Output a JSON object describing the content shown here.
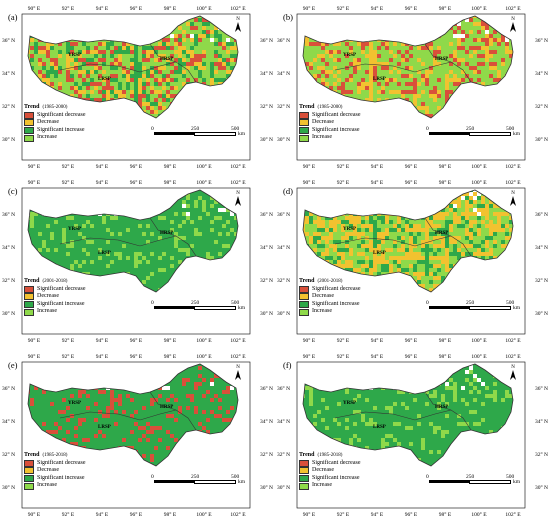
{
  "panels": [
    {
      "id": "a",
      "label": "(a)",
      "trend_title": "Trend",
      "period": "(1985-2000)",
      "legend": [
        "Significant decrease",
        "Decrease",
        "Significant increase",
        "Increase"
      ],
      "theme": "mixed"
    },
    {
      "id": "b",
      "label": "(b)",
      "trend_title": "Trend",
      "period": "(1985-2000)",
      "legend": [
        "Significant decrease",
        "Decrease",
        "Significant increase",
        "Increase"
      ],
      "theme": "lightgreen"
    },
    {
      "id": "c",
      "label": "(c)",
      "trend_title": "Trend",
      "period": "(2001-2018)",
      "legend": [
        "Significant decrease",
        "Decrease",
        "Significant increase",
        "Increase"
      ],
      "theme": "green"
    },
    {
      "id": "d",
      "label": "(d)",
      "trend_title": "Trend",
      "period": "(2001-2018)",
      "legend": [
        "Significant decrease",
        "Decrease",
        "Significant increase",
        "Increase"
      ],
      "theme": "yellow"
    },
    {
      "id": "e",
      "label": "(e)",
      "trend_title": "Trend",
      "period": "(1985-2018)",
      "legend": [
        "Significant decrease",
        "Decrease",
        "Significant increase",
        "Increase"
      ],
      "theme": "darkgreen"
    },
    {
      "id": "f",
      "label": "(f)",
      "trend_title": "Trend",
      "period": "(1985-2018)",
      "legend": [
        "Significant decrease",
        "Decrease",
        "Significant increase",
        "Increase"
      ],
      "theme": "green"
    }
  ],
  "lon_ticks": [
    "90° E",
    "92° E",
    "94° E",
    "96° E",
    "98° E",
    "100° E",
    "102° E"
  ],
  "lat_ticks": [
    "36° N",
    "34° N",
    "32° N",
    "30° N"
  ],
  "regions": [
    "YRSP",
    "HRSP",
    "LRSP"
  ],
  "scale": {
    "ticks": [
      "0",
      "250",
      "500"
    ],
    "unit": "km"
  },
  "north": "N",
  "colors": {
    "sig_decrease": "#d9503a",
    "decrease": "#f2c230",
    "sig_increase": "#2ea84a",
    "increase": "#8fd94a",
    "boundary": "#333333"
  }
}
